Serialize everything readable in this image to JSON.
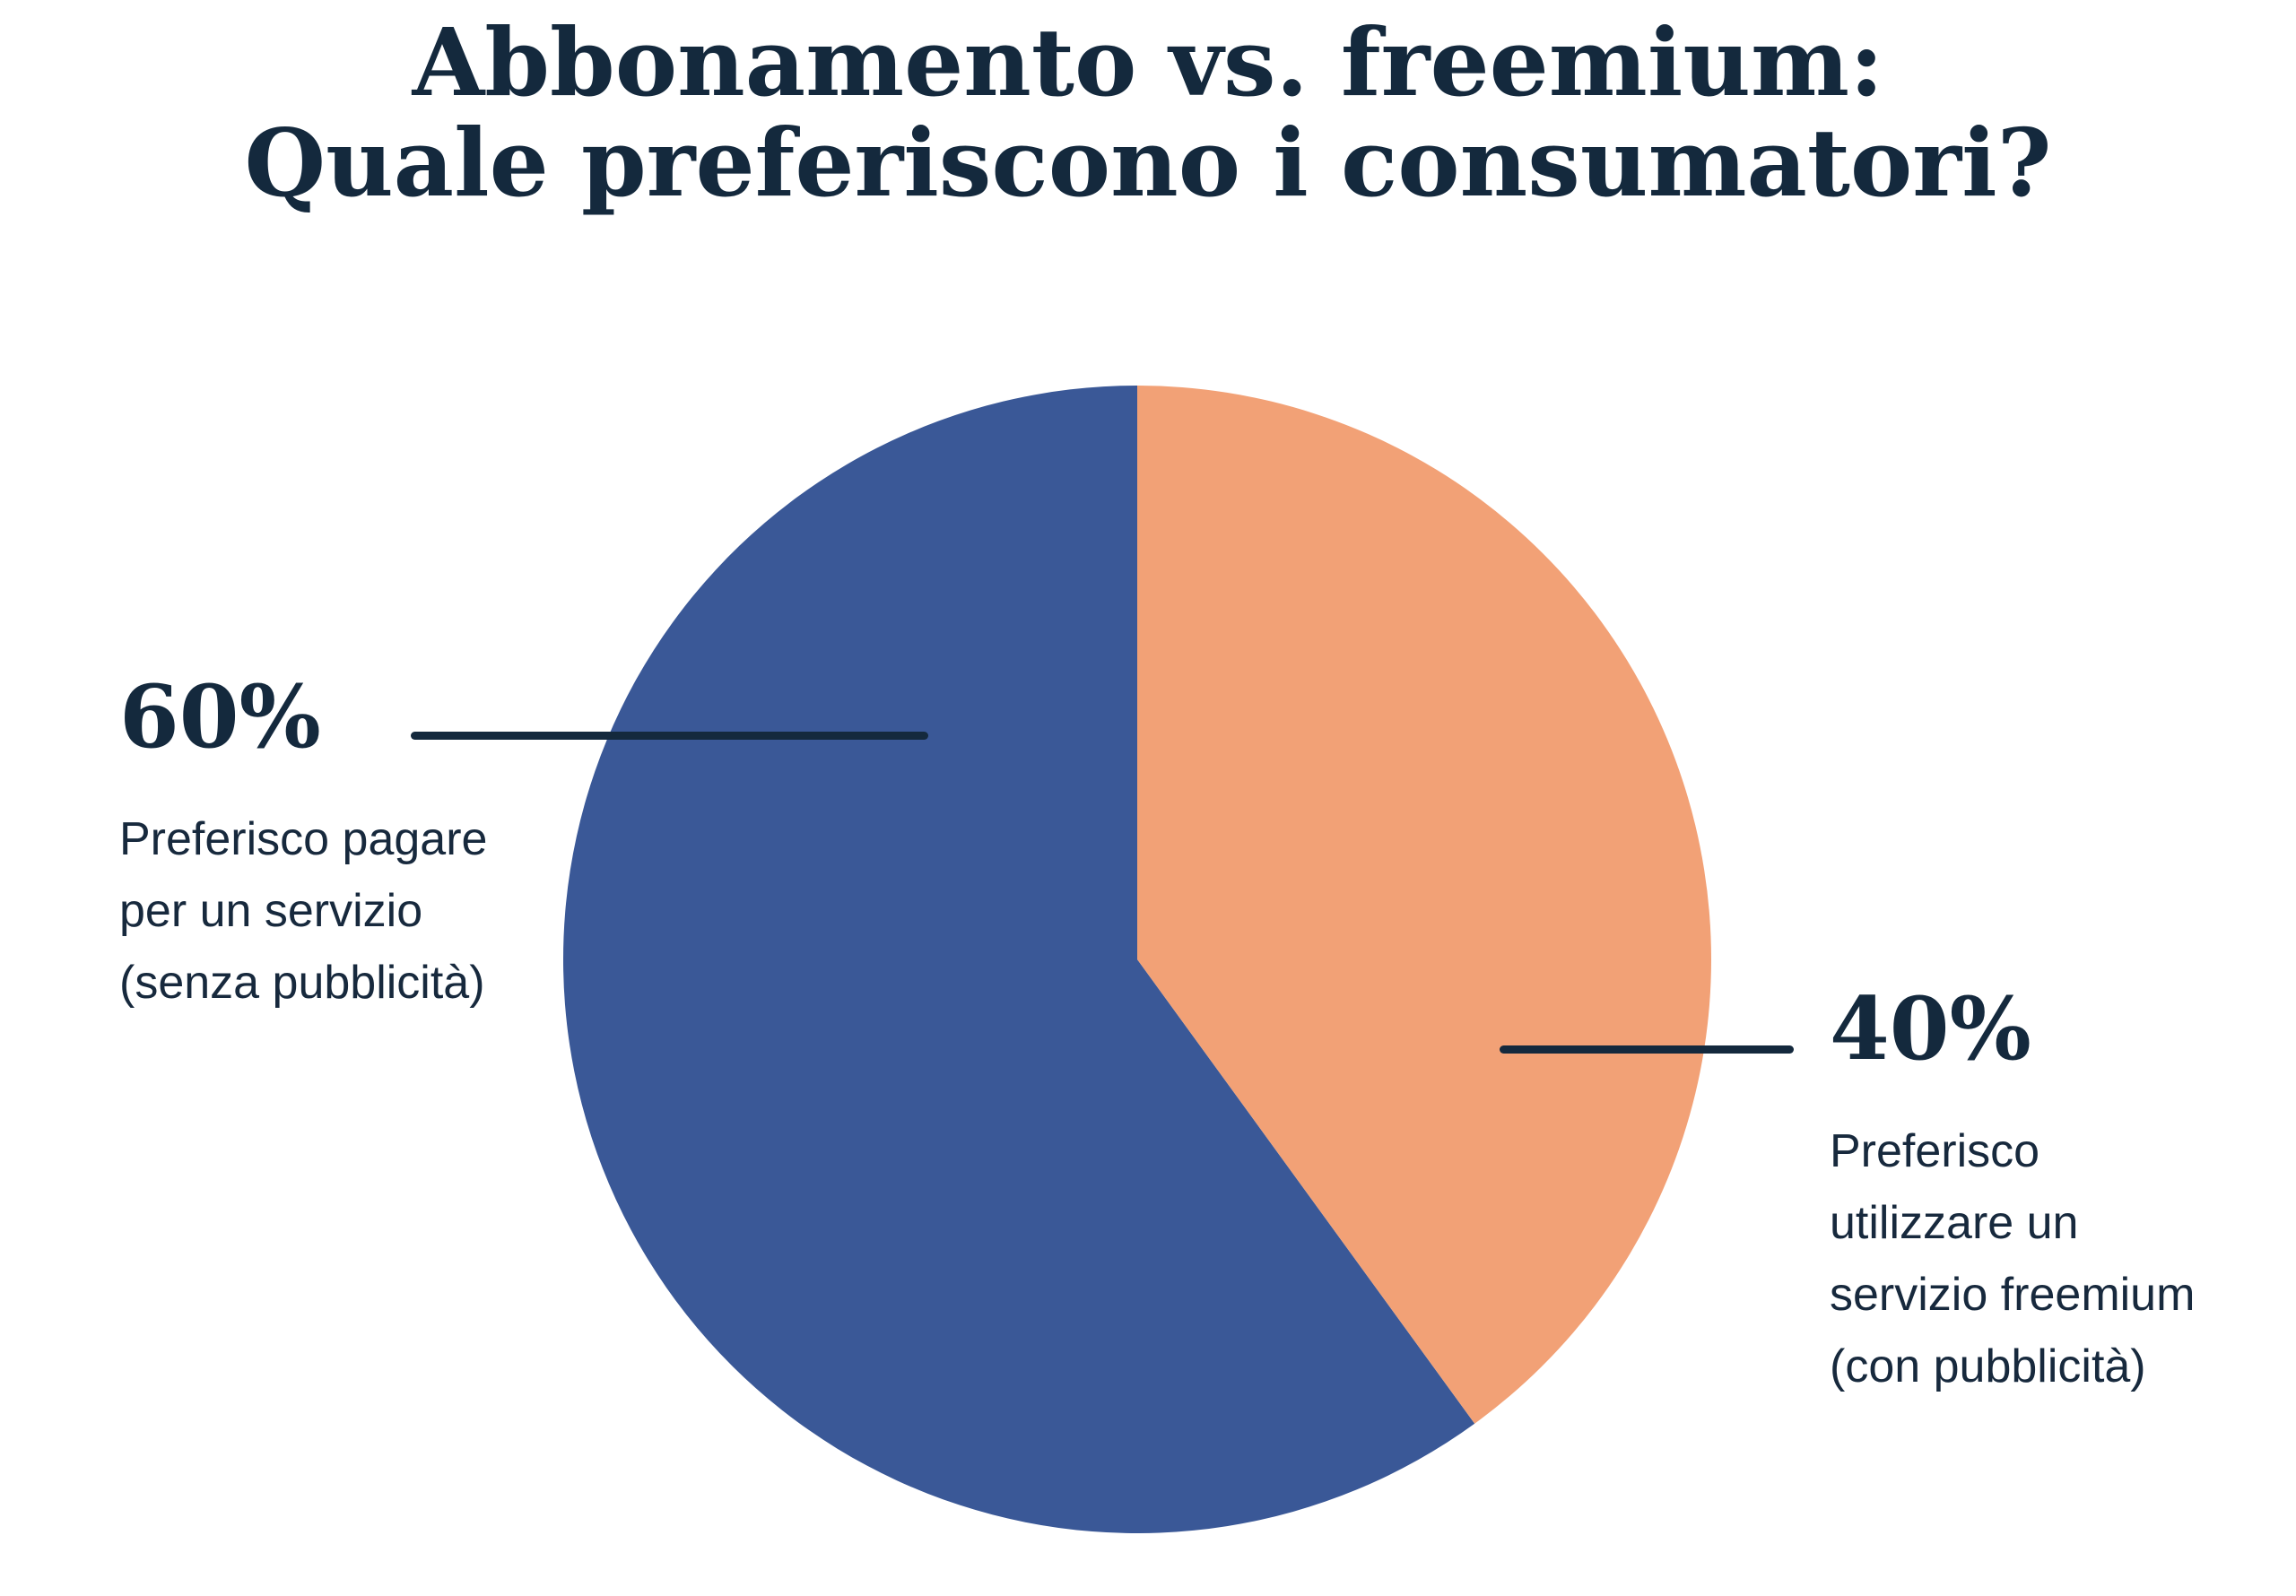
{
  "title": {
    "line1": "Abbonamento vs. freemium:",
    "line2": "Quale preferiscono i consumatori?"
  },
  "chart_data": {
    "type": "pie",
    "title": "Abbonamento vs. freemium: Quale preferiscono i consumatori?",
    "start_angle_deg": 0,
    "direction": "counterclockwise",
    "legend_position": "side-callouts",
    "slices": [
      {
        "id": "subscription",
        "label": "Preferisco pagare per un servizio (senza pubblicità)",
        "value": 60,
        "pct_label": "60%",
        "color": "#3A5897"
      },
      {
        "id": "freemium",
        "label": "Preferisco utilizzare un servizio freemium (con pubblicità)",
        "value": 40,
        "pct_label": "40%",
        "color": "#F2A176"
      }
    ]
  },
  "callouts": {
    "left": {
      "pct": "60%",
      "lines": [
        "Preferisco pagare",
        "per un servizio",
        "(senza pubblicità)"
      ]
    },
    "right": {
      "pct": "40%",
      "lines": [
        "Preferisco",
        "utilizzare un",
        "servizio freemium",
        "(con pubblicità)"
      ]
    }
  },
  "colors": {
    "text_navy": "#14293D",
    "slice_blue": "#3A5897",
    "slice_orange": "#F2A176",
    "leader_line": "#14293D",
    "background": "#FFFFFF"
  }
}
